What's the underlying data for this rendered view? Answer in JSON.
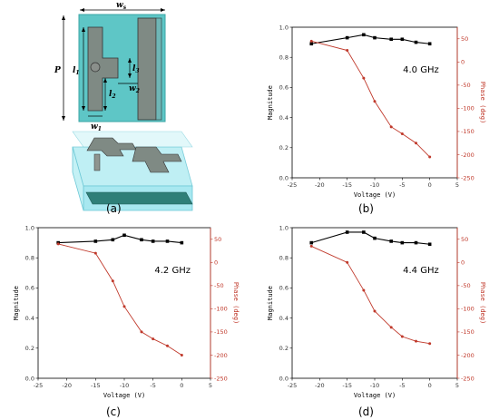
{
  "panels": {
    "a": "(a)",
    "b": "(b)",
    "c": "(c)",
    "d": "(d)"
  },
  "diagram_labels": {
    "ws": "w",
    "ws_sub": "s",
    "p": "P",
    "l1": "l",
    "l1_sub": "1",
    "l2": "l",
    "l2_sub": "2",
    "l3": "l",
    "l3_sub": "3",
    "w2": "w",
    "w2_sub": "2",
    "w1": "w",
    "w1_sub": "1"
  },
  "colors": {
    "magnitude": "#000000",
    "phase": "#c0392b",
    "substrate": "#5ec6c6",
    "patch": "#7f8a84",
    "box": "#a8e8f0"
  },
  "chart_data": [
    {
      "type": "line",
      "panel": "b",
      "annotation": "4.0 GHz",
      "xlabel": "Voltage (V)",
      "ylabel_left": "Magnitude",
      "ylabel_right": "Phase (deg)",
      "xlim": [
        -25,
        5
      ],
      "xticks": [
        -25,
        -20,
        -15,
        -10,
        -5,
        0,
        5
      ],
      "ylim_left": [
        0,
        1.0
      ],
      "yticks_left": [
        "0.0",
        "0.2",
        "0.4",
        "0.6",
        "0.8",
        "1.0"
      ],
      "ylim_right": [
        -250,
        75
      ],
      "yticks_right": [
        "-250",
        "-200",
        "-150",
        "-100",
        "-50",
        "0",
        "50"
      ],
      "x": [
        -21.5,
        -15,
        -12,
        -10,
        -7,
        -5,
        -2.5,
        0
      ],
      "series": [
        {
          "axis": "left",
          "values": [
            0.89,
            0.93,
            0.95,
            0.93,
            0.92,
            0.92,
            0.9,
            0.89
          ]
        },
        {
          "axis": "right",
          "values": [
            45,
            25,
            -35,
            -85,
            -140,
            -155,
            -175,
            -205
          ]
        }
      ]
    },
    {
      "type": "line",
      "panel": "c",
      "annotation": "4.2 GHz",
      "xlabel": "Voltage (V)",
      "ylabel_left": "Magnitude",
      "ylabel_right": "Phase (deg)",
      "xlim": [
        -25,
        5
      ],
      "xticks": [
        -25,
        -20,
        -15,
        -10,
        -5,
        0,
        5
      ],
      "ylim_left": [
        0,
        1.0
      ],
      "yticks_left": [
        "0.0",
        "0.2",
        "0.4",
        "0.6",
        "0.8",
        "1.0"
      ],
      "ylim_right": [
        -250,
        75
      ],
      "yticks_right": [
        "-250",
        "-200",
        "-150",
        "-100",
        "-50",
        "0",
        "50"
      ],
      "x": [
        -21.5,
        -15,
        -12,
        -10,
        -7,
        -5,
        -2.5,
        0
      ],
      "series": [
        {
          "axis": "left",
          "values": [
            0.9,
            0.91,
            0.92,
            0.95,
            0.92,
            0.91,
            0.91,
            0.9
          ]
        },
        {
          "axis": "right",
          "values": [
            40,
            20,
            -40,
            -95,
            -150,
            -165,
            -180,
            -200
          ]
        }
      ]
    },
    {
      "type": "line",
      "panel": "d",
      "annotation": "4.4 GHz",
      "xlabel": "Voltage (V)",
      "ylabel_left": "Magnitude",
      "ylabel_right": "Phase (deg)",
      "xlim": [
        -25,
        5
      ],
      "xticks": [
        -25,
        -20,
        -15,
        -10,
        -5,
        0,
        5
      ],
      "ylim_left": [
        0,
        1.0
      ],
      "yticks_left": [
        "0.0",
        "0.2",
        "0.4",
        "0.6",
        "0.8",
        "1.0"
      ],
      "ylim_right": [
        -250,
        75
      ],
      "yticks_right": [
        "-250",
        "-200",
        "-150",
        "-100",
        "-50",
        "0",
        "50"
      ],
      "x": [
        -21.5,
        -15,
        -12,
        -10,
        -7,
        -5,
        -2.5,
        0
      ],
      "series": [
        {
          "axis": "left",
          "values": [
            0.9,
            0.97,
            0.97,
            0.93,
            0.91,
            0.9,
            0.9,
            0.89
          ]
        },
        {
          "axis": "right",
          "values": [
            35,
            0,
            -60,
            -105,
            -140,
            -160,
            -170,
            -175
          ]
        }
      ]
    }
  ]
}
